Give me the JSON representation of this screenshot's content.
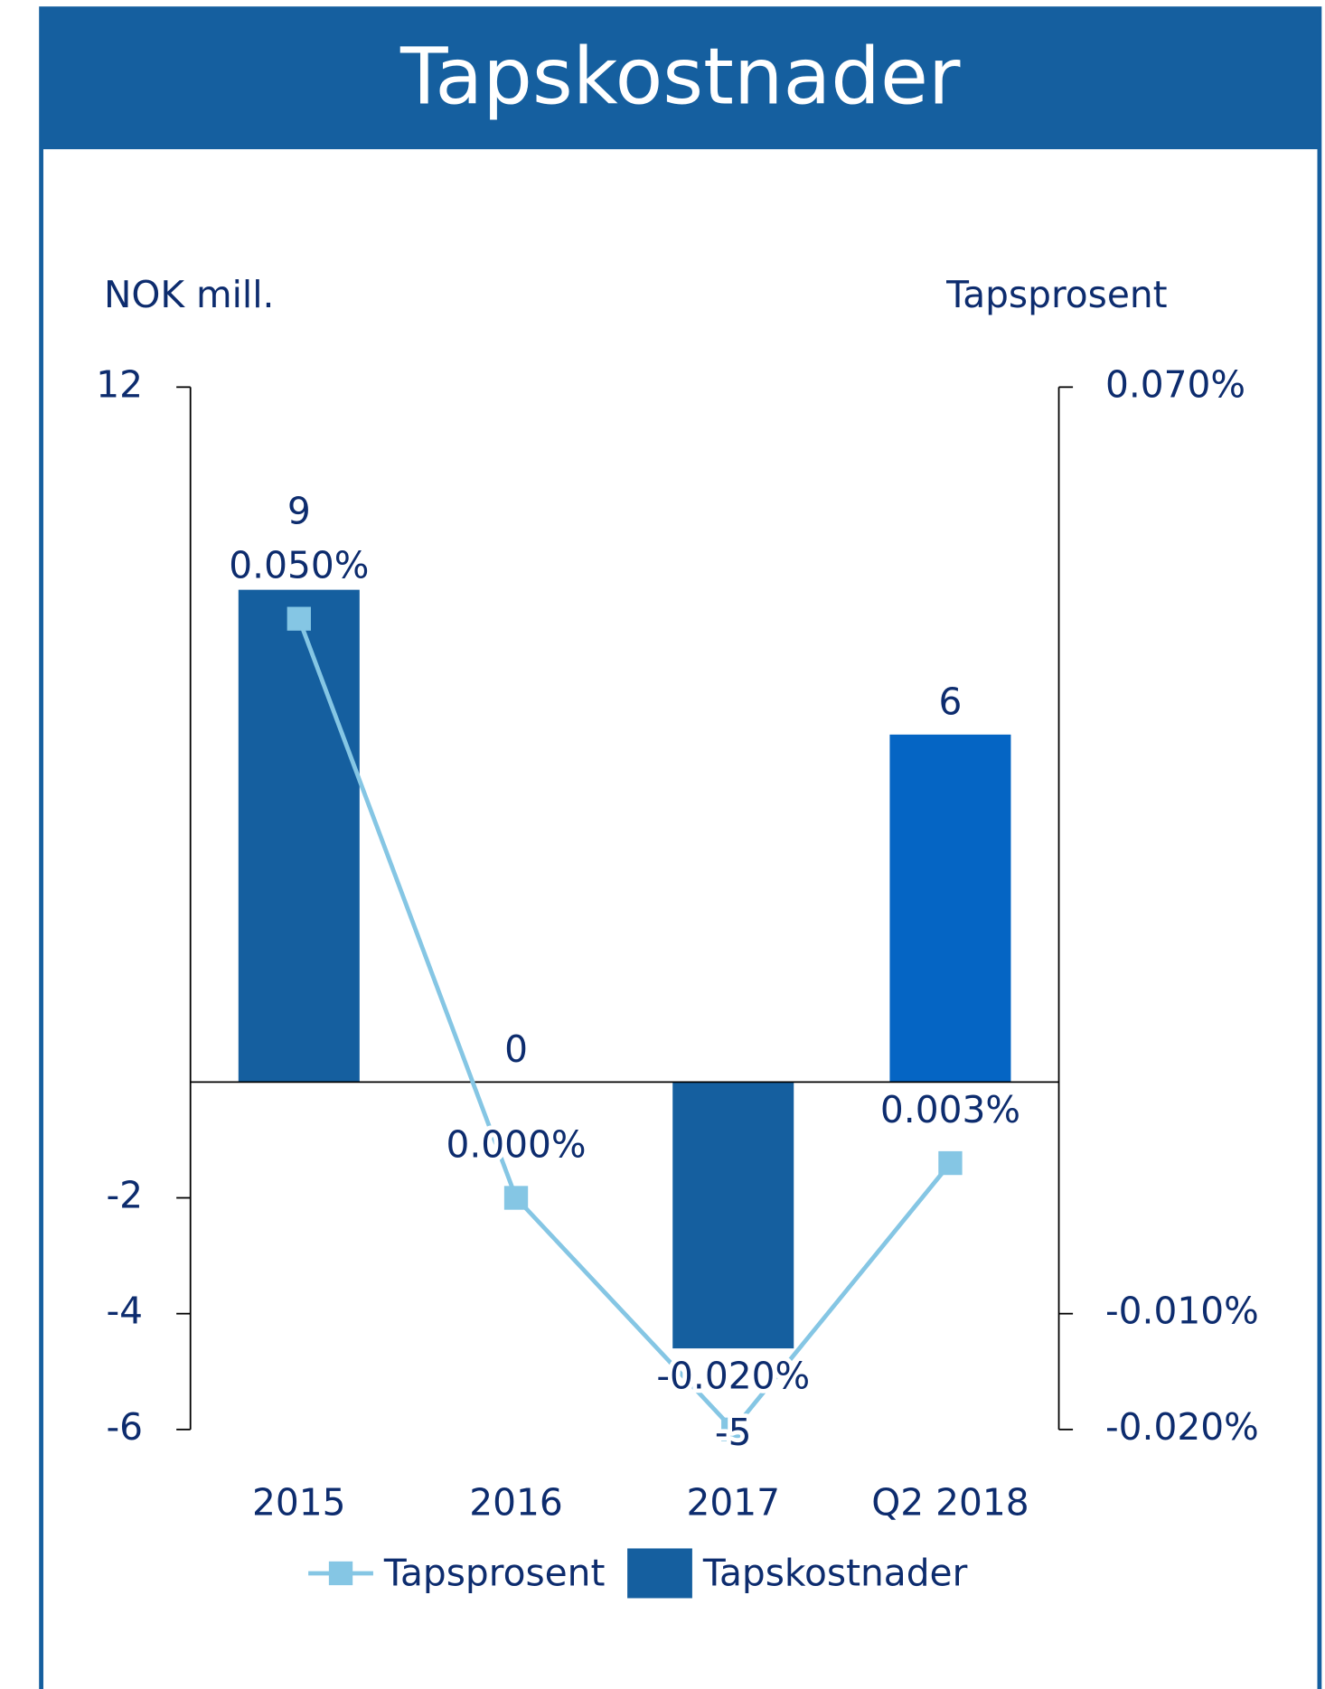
{
  "chart_data": {
    "type": "bar_line",
    "title": "Tapskostnader",
    "y_label": "NOK mill.",
    "y2_label": "Tapsprosent",
    "categories": [
      "2015",
      "2016",
      "2017",
      "Q2 2018"
    ],
    "ylim": [
      -6,
      12
    ],
    "yticks": [
      12,
      -2,
      -4,
      -6
    ],
    "y2lim": [
      -0.02,
      0.07
    ],
    "y2ticks": [
      {
        "value": 0.07,
        "label": "0.070%"
      },
      {
        "value": -0.01,
        "label": "-0.010%"
      },
      {
        "value": -0.02,
        "label": "-0.020%"
      }
    ],
    "series": [
      {
        "name": "Tapskostnader",
        "type": "bar",
        "color": "#155f9f",
        "colors": [
          "#155f9f",
          "#155f9f",
          "#155f9f",
          "#0565c4"
        ],
        "values": [
          8.5,
          0,
          -4.6,
          6
        ],
        "value_labels": [
          "9",
          "0",
          "-5",
          "6"
        ]
      },
      {
        "name": "Tapsprosent",
        "type": "line",
        "axis": "y2",
        "color": "#85c6e4",
        "values": [
          0.05,
          0.0,
          -0.02,
          0.003
        ],
        "value_labels": [
          "0.050%",
          "0.000%",
          "-0.020%",
          "0.003%"
        ]
      }
    ],
    "legend": "bottom"
  }
}
